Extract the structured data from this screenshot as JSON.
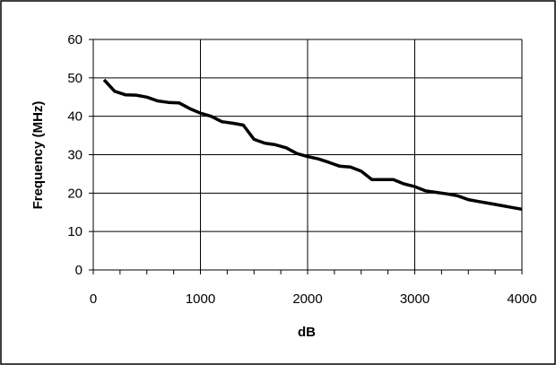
{
  "chart_data": {
    "type": "line",
    "title": "",
    "xlabel": "dB",
    "ylabel": "Frequency (MHz)",
    "xlim": [
      0,
      4000
    ],
    "ylim": [
      0,
      60
    ],
    "x_ticks": [
      "0",
      "1000",
      "2000",
      "3000",
      "4000"
    ],
    "y_ticks": [
      "0",
      "10",
      "20",
      "30",
      "40",
      "50",
      "60"
    ],
    "x_tick_values": [
      0,
      1000,
      2000,
      3000,
      4000
    ],
    "y_tick_values": [
      0,
      10,
      20,
      30,
      40,
      50,
      60
    ],
    "grid": "vertical and horizontal major gridlines",
    "legend": "none",
    "series": [
      {
        "color": "#000000",
        "x": [
          100,
          200,
          300,
          400,
          500,
          600,
          700,
          800,
          900,
          1000,
          1100,
          1200,
          1300,
          1400,
          1500,
          1600,
          1700,
          1800,
          1900,
          2000,
          2100,
          2200,
          2300,
          2400,
          2500,
          2600,
          2700,
          2800,
          2900,
          3000,
          3100,
          3200,
          3300,
          3400,
          3500,
          3600,
          3700,
          3800,
          3900,
          4000
        ],
        "y": [
          49.5,
          46.5,
          45.6,
          45.5,
          45.0,
          44.0,
          43.6,
          43.5,
          42.0,
          40.8,
          40.0,
          38.6,
          38.2,
          37.7,
          34.0,
          33.0,
          32.6,
          31.8,
          30.3,
          29.5,
          28.9,
          28.0,
          27.0,
          26.8,
          25.7,
          23.5,
          23.5,
          23.5,
          22.4,
          21.7,
          20.6,
          20.2,
          19.8,
          19.3,
          18.3,
          17.8,
          17.3,
          16.8,
          16.3,
          15.8
        ]
      }
    ]
  }
}
